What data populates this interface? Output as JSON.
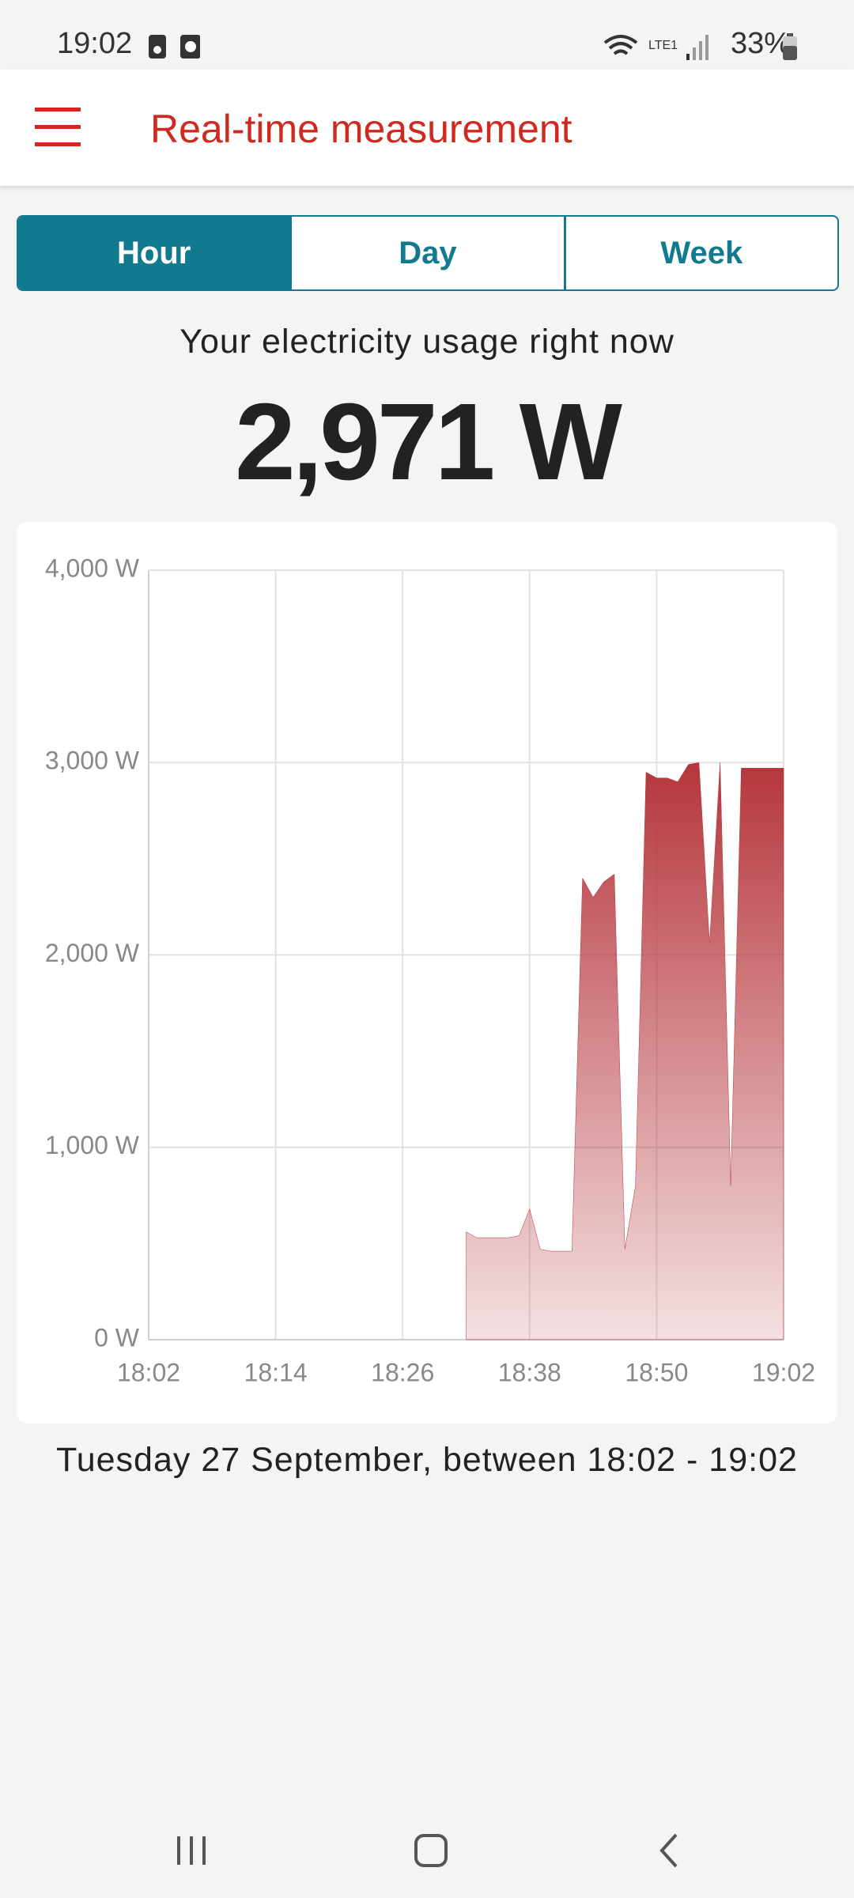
{
  "status_bar": {
    "time": "19:02",
    "battery": "33%"
  },
  "app_bar": {
    "title": "Real-time measurement"
  },
  "tabs": [
    "Hour",
    "Day",
    "Week"
  ],
  "headline": "Your electricity usage right now",
  "current_usage": "2,971 W",
  "chart_data": {
    "type": "area",
    "color": "#b5363c",
    "grid": true,
    "x": [
      "18:32",
      "18:33",
      "18:34",
      "18:35",
      "18:36",
      "18:37",
      "18:38",
      "18:39",
      "18:40",
      "18:41",
      "18:42",
      "18:43",
      "18:44",
      "18:45",
      "18:46",
      "18:47",
      "18:48",
      "18:49",
      "18:50",
      "18:51",
      "18:52",
      "18:53",
      "18:54",
      "18:55",
      "18:56",
      "18:57",
      "18:58",
      "18:59",
      "19:00",
      "19:01",
      "19:02"
    ],
    "values": [
      560,
      530,
      530,
      530,
      530,
      540,
      680,
      470,
      460,
      460,
      460,
      2400,
      2300,
      2380,
      2420,
      470,
      800,
      2950,
      2920,
      2920,
      2900,
      2990,
      3000,
      2060,
      3000,
      800,
      2971,
      2971,
      2971,
      2971,
      2971
    ],
    "xlim": [
      "18:02",
      "19:02"
    ],
    "xticks": [
      "18:02",
      "18:14",
      "18:26",
      "18:38",
      "18:50",
      "19:02"
    ],
    "ylim": [
      0,
      4000
    ],
    "yticks": [
      {
        "value": 0,
        "label": "0 W"
      },
      {
        "value": 1000,
        "label": "1,000 W"
      },
      {
        "value": 2000,
        "label": "2,000 W"
      },
      {
        "value": 3000,
        "label": "3,000 W"
      },
      {
        "value": 4000,
        "label": "4,000 W"
      }
    ]
  },
  "caption": "Tuesday 27 September, between 18:02 - 19:02"
}
